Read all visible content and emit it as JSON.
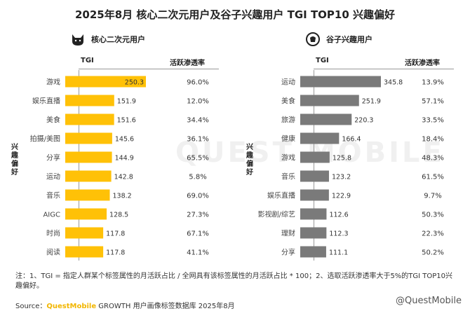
{
  "title": "2025年8月 核心二次元用户及谷子兴趣用户 TGI TOP10 兴趣偏好",
  "chart_data": [
    {
      "type": "bar",
      "group": "核心二次元用户",
      "header_tgi": "TGI",
      "header_active": "活跃渗透率",
      "side_label": "兴趣偏好",
      "color": "#ffc107",
      "categories": [
        "游戏",
        "娱乐直播",
        "美食",
        "拍摄/美图",
        "分享",
        "运动",
        "音乐",
        "AIGC",
        "时尚",
        "阅读"
      ],
      "values": [
        250.3,
        151.9,
        151.6,
        145.6,
        144.9,
        142.8,
        138.2,
        128.5,
        117.8,
        117.8
      ],
      "active_rates": [
        "96.0%",
        "12.0%",
        "34.4%",
        "36.1%",
        "65.5%",
        "5.8%",
        "69.0%",
        "27.3%",
        "67.1%",
        "41.1%"
      ]
    },
    {
      "type": "bar",
      "group": "谷子兴趣用户",
      "header_tgi": "TGI",
      "header_active": "活跃渗透率",
      "side_label": "兴趣偏好",
      "color": "#7a7a7a",
      "categories": [
        "运动",
        "美食",
        "旅游",
        "健康",
        "游戏",
        "音乐",
        "娱乐直播",
        "影视剧/综艺",
        "理财",
        "分享"
      ],
      "values": [
        345.8,
        251.9,
        220.3,
        166.4,
        125.8,
        123.2,
        122.9,
        112.6,
        112.3,
        111.1
      ],
      "active_rates": [
        "13.9%",
        "57.1%",
        "33.5%",
        "18.4%",
        "48.3%",
        "61.5%",
        "9.7%",
        "50.3%",
        "22.3%",
        "50.2%"
      ]
    }
  ],
  "note": "注：1、TGI = 指定人群某个标签属性的月活跃占比 / 全网具有该标签属性的月活跃占比 * 100；2、选取活跃渗透率大于5%的TGI TOP10兴趣偏好。",
  "source_label": "Source：",
  "source_brand": "QuestMobile",
  "source_text": " GROWTH 用户画像标签数据库 2025年8月",
  "footer_mark": "@QuestMobile",
  "watermark": "QUEST MOBILE"
}
